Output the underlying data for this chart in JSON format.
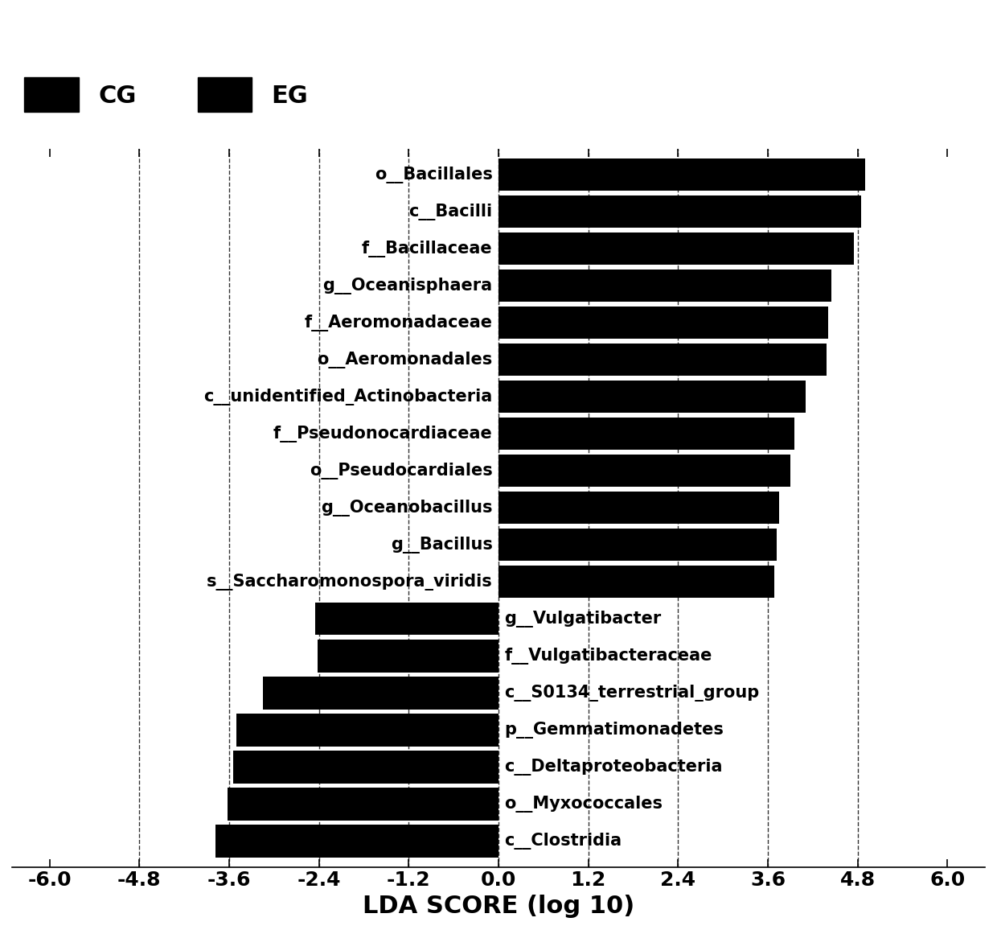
{
  "categories": [
    "o__Bacillales",
    "c__Bacilli",
    "f__Bacillaceae",
    "g__Oceanisphaera",
    "f__Aeromonadaceae",
    "o__Aeromonadales",
    "c__unidentified_Actinobacteria",
    "f__Pseudonocardiaceae",
    "o__Pseudocardiales",
    "g__Oceanobacillus",
    "g__Bacillus",
    "s__Saccharomonospora_viridis",
    "g__Vulgatibacter",
    "f__Vulgatibacteraceae",
    "c__S0134_terrestrial_group",
    "p__Gemmatimonadetes",
    "c__Deltaproteobacteria",
    "o__Myxococcales",
    "c__Clostridia"
  ],
  "values": [
    4.9,
    4.85,
    4.75,
    4.45,
    4.4,
    4.38,
    4.1,
    3.95,
    3.9,
    3.75,
    3.72,
    3.68,
    -2.45,
    -2.42,
    -3.15,
    -3.5,
    -3.55,
    -3.62,
    -3.78
  ],
  "bar_color": "#000000",
  "background_color": "#ffffff",
  "xlabel": "LDA SCORE (log 10)",
  "xlim": [
    -6.5,
    6.5
  ],
  "xticks": [
    -6.0,
    -4.8,
    -3.6,
    -2.4,
    -1.2,
    0.0,
    1.2,
    2.4,
    3.6,
    4.8,
    6.0
  ],
  "xtick_labels": [
    "-6.0",
    "-4.8",
    "-3.6",
    "-2.4",
    "-1.2",
    "0.0",
    "1.2",
    "2.4",
    "3.6",
    "4.8",
    "6.0"
  ],
  "vlines": [
    -4.8,
    -3.6,
    -2.4,
    -1.2,
    0.0,
    1.2,
    2.4,
    3.6,
    4.8
  ],
  "legend": [
    {
      "label": "CG",
      "color": "#000000"
    },
    {
      "label": "EG",
      "color": "#000000"
    }
  ],
  "bar_height": 0.88,
  "xlabel_fontsize": 22,
  "tick_fontsize": 18,
  "label_fontsize": 15
}
